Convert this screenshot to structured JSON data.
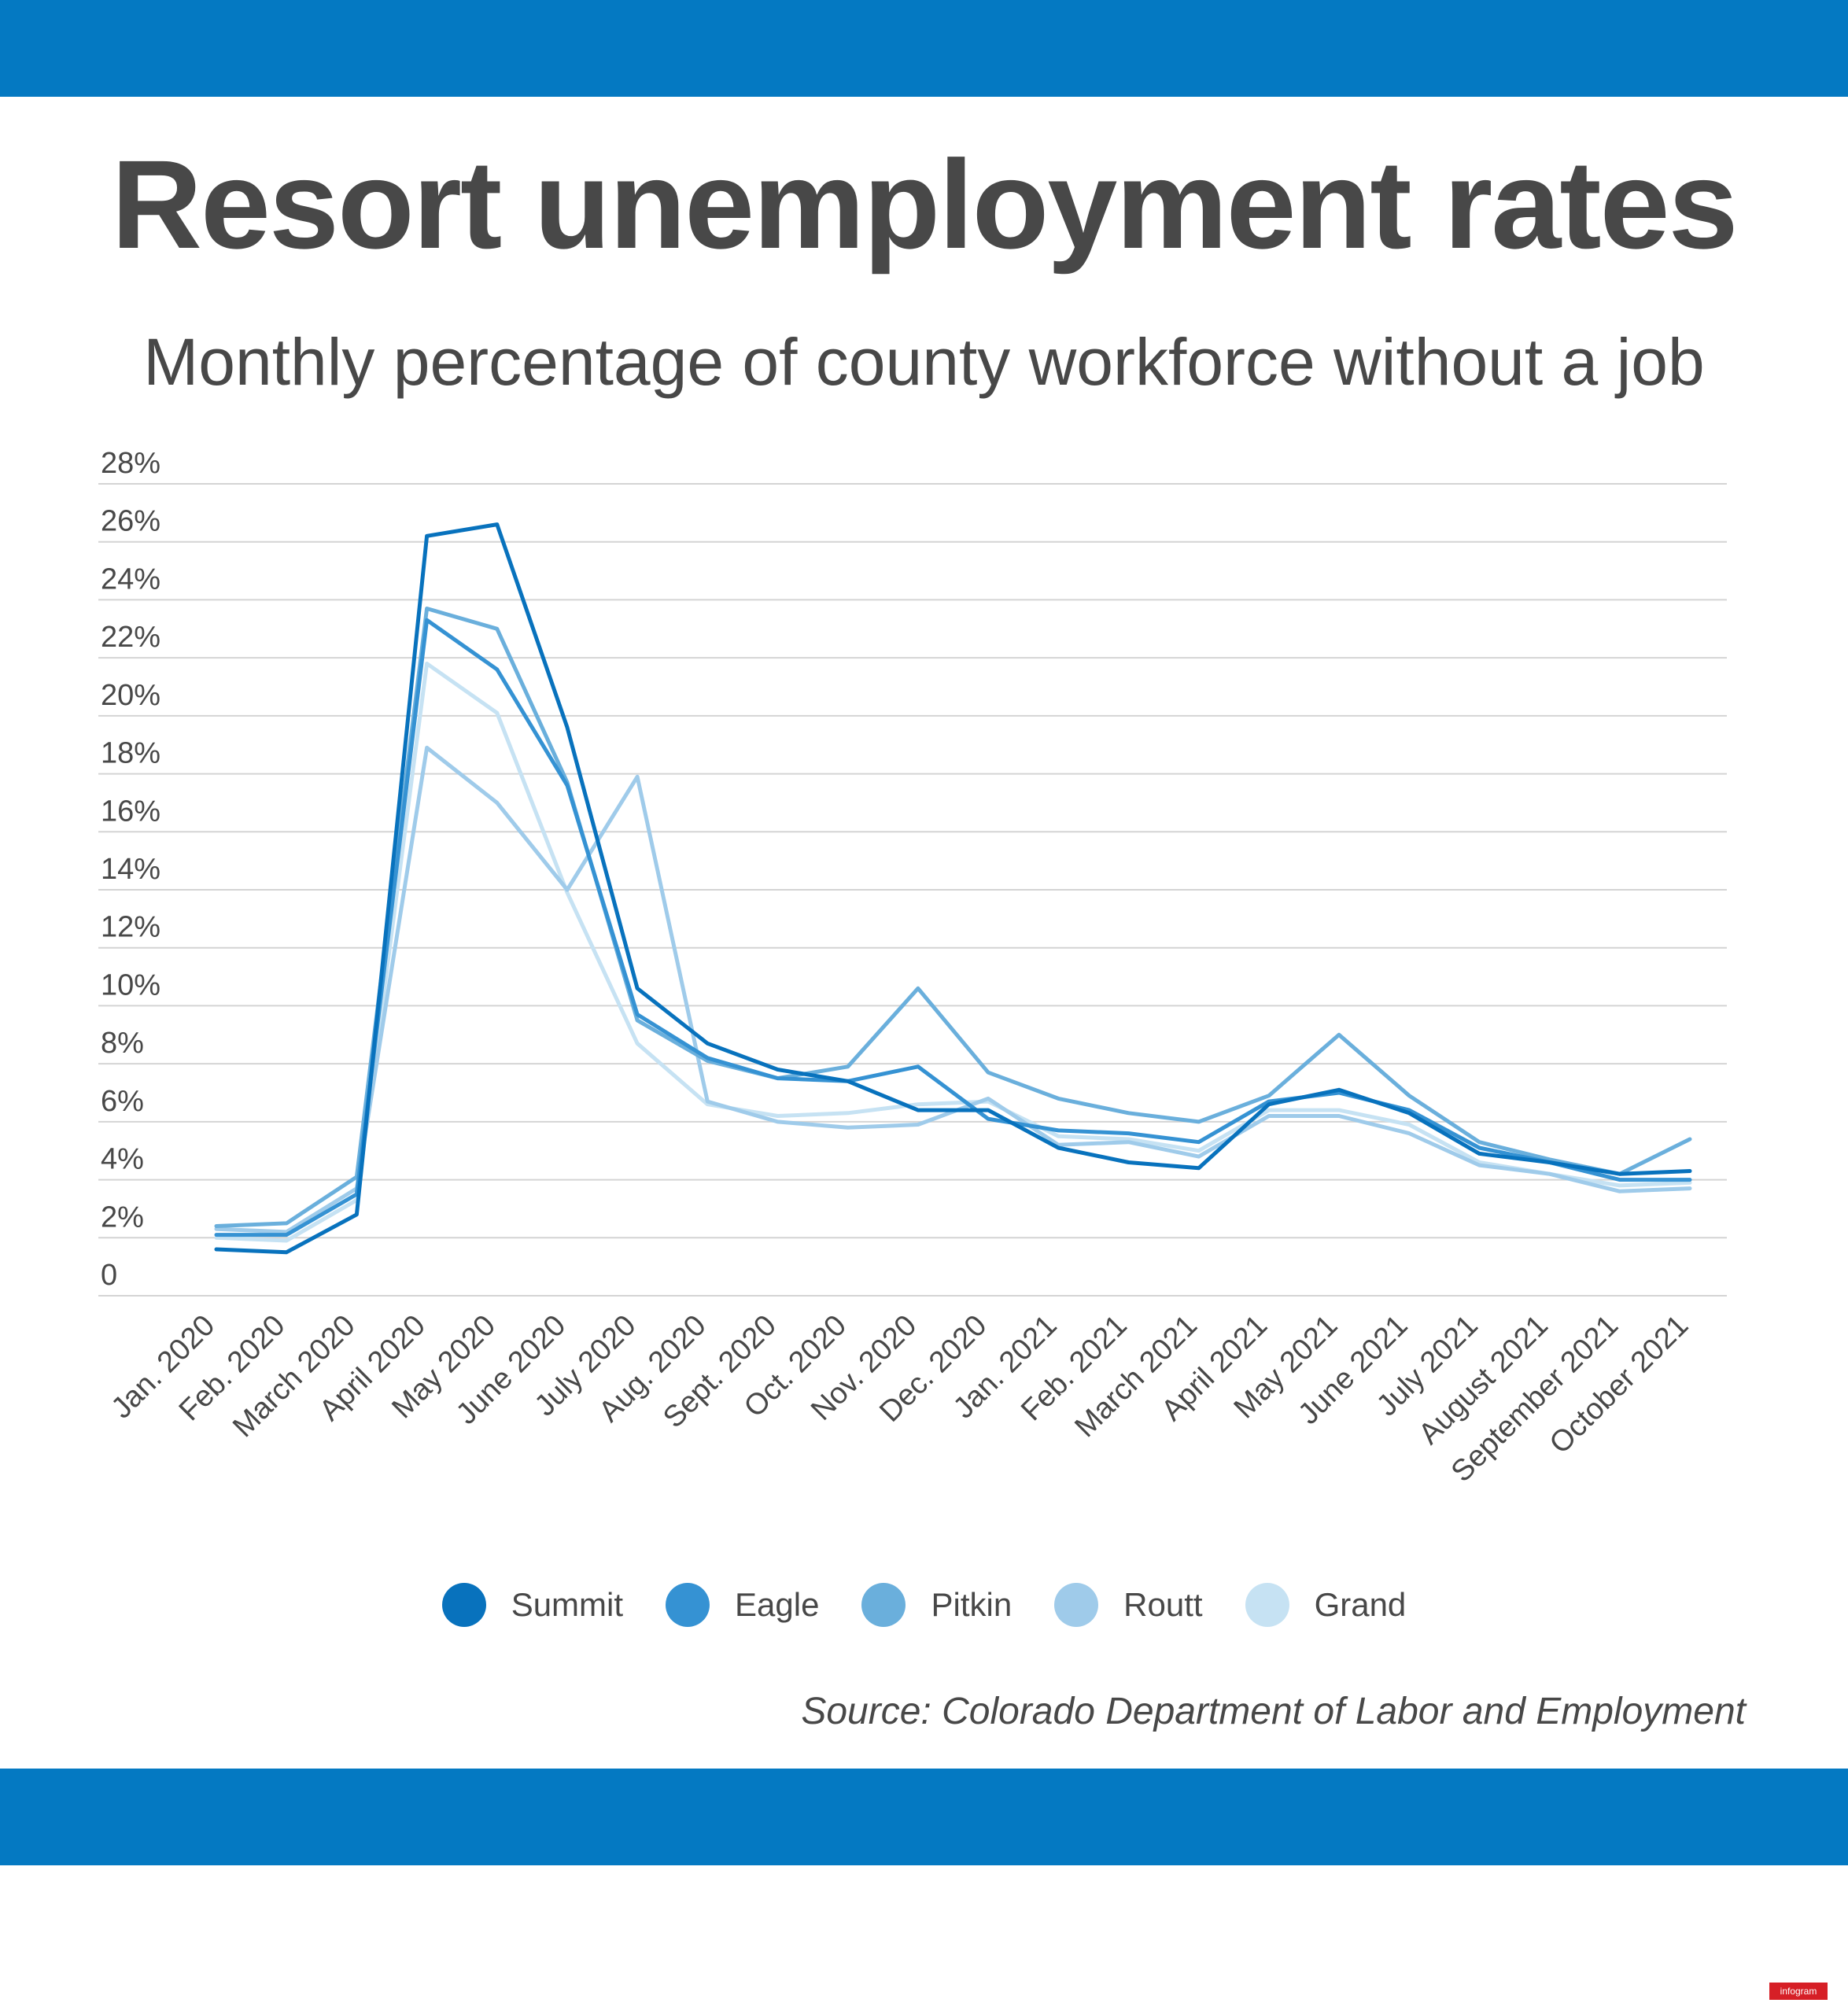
{
  "title": "Resort unemployment rates",
  "subtitle": "Monthly percentage of county workforce without a job",
  "source": "Source: Colorado Department of Labor and Employment",
  "badge": "infogram",
  "colors": {
    "band": "#0479c2",
    "text": "#484848",
    "grid": "#d4d4d4"
  },
  "chart_data": {
    "type": "line",
    "categories": [
      "Jan. 2020",
      "Feb. 2020",
      "March 2020",
      "April 2020",
      "May 2020",
      "June 2020",
      "July 2020",
      "Aug. 2020",
      "Sept. 2020",
      "Oct. 2020",
      "Nov. 2020",
      "Dec. 2020",
      "Jan. 2021",
      "Feb. 2021",
      "March 2021",
      "April 2021",
      "May 2021",
      "June 2021",
      "July 2021",
      "August 2021",
      "September 2021",
      "October 2021"
    ],
    "y_ticks": [
      "0",
      "2%",
      "4%",
      "6%",
      "8%",
      "10%",
      "12%",
      "14%",
      "16%",
      "18%",
      "20%",
      "22%",
      "24%",
      "26%",
      "28%"
    ],
    "ylim": [
      0,
      28
    ],
    "grid": true,
    "legend_position": "bottom",
    "series": [
      {
        "name": "Grand",
        "color": "#c6e2f3",
        "values": [
          2.0,
          1.9,
          3.3,
          21.8,
          20.1,
          13.9,
          8.7,
          6.6,
          6.2,
          6.3,
          6.6,
          6.7,
          5.5,
          5.4,
          5.0,
          6.4,
          6.4,
          5.9,
          4.6,
          4.2,
          3.8,
          3.9
        ]
      },
      {
        "name": "Routt",
        "color": "#9fcbea",
        "values": [
          2.3,
          2.2,
          3.7,
          18.9,
          17.0,
          14.0,
          17.9,
          6.7,
          6.0,
          5.8,
          5.9,
          6.8,
          5.2,
          5.3,
          4.8,
          6.2,
          6.2,
          5.6,
          4.5,
          4.2,
          3.6,
          3.7
        ]
      },
      {
        "name": "Pitkin",
        "color": "#6aafdc",
        "values": [
          2.4,
          2.5,
          4.1,
          23.7,
          23.0,
          17.7,
          9.5,
          8.1,
          7.5,
          7.9,
          10.6,
          7.7,
          6.8,
          6.3,
          6.0,
          6.9,
          9.0,
          6.9,
          5.3,
          4.7,
          4.2,
          5.4
        ]
      },
      {
        "name": "Eagle",
        "color": "#3592d3",
        "values": [
          2.1,
          2.1,
          3.5,
          23.3,
          21.6,
          17.6,
          9.7,
          8.2,
          7.5,
          7.4,
          7.9,
          6.1,
          5.7,
          5.6,
          5.3,
          6.7,
          7.0,
          6.4,
          5.1,
          4.6,
          4.0,
          4.0
        ]
      },
      {
        "name": "Summit",
        "color": "#0872bd",
        "values": [
          1.6,
          1.5,
          2.8,
          26.2,
          26.6,
          19.6,
          10.6,
          8.7,
          7.8,
          7.4,
          6.4,
          6.4,
          5.1,
          4.6,
          4.4,
          6.6,
          7.1,
          6.3,
          4.9,
          4.6,
          4.2,
          4.3
        ]
      }
    ],
    "legend": [
      {
        "name": "Summit",
        "color": "#0872bd"
      },
      {
        "name": "Eagle",
        "color": "#3592d3"
      },
      {
        "name": "Pitkin",
        "color": "#6aafdc"
      },
      {
        "name": "Routt",
        "color": "#9fcbea"
      },
      {
        "name": "Grand",
        "color": "#c6e2f3"
      }
    ]
  }
}
